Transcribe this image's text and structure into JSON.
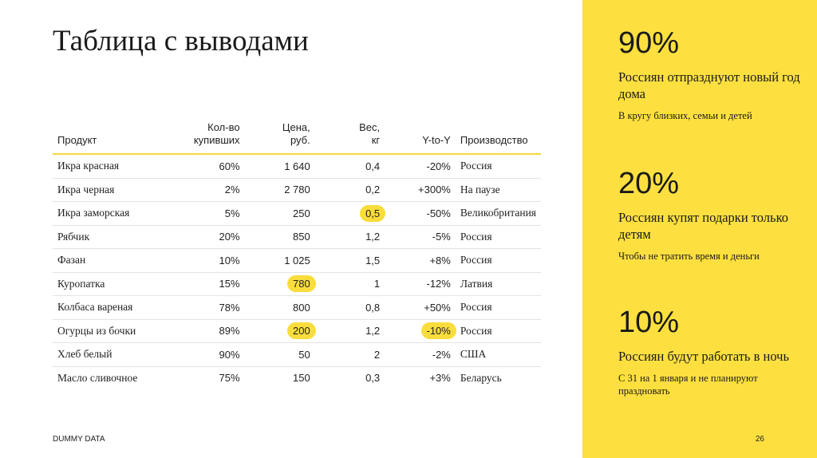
{
  "title": "Таблица с выводами",
  "table": {
    "headers": {
      "product": "Продукт",
      "share": "Кол-во\nкупивших",
      "price": "Цена,\nруб.",
      "weight": "Вес,\nкг",
      "yoy": "Y-to-Y",
      "origin": "Производство"
    },
    "rows": [
      {
        "product": "Икра красная",
        "share": "60%",
        "price": "1 640",
        "weight": "0,4",
        "yoy": "-20%",
        "origin": "Россия"
      },
      {
        "product": "Икра черная",
        "share": "2%",
        "price": "2 780",
        "weight": "0,2",
        "yoy": "+300%",
        "origin": "На паузе"
      },
      {
        "product": "Икра заморская",
        "share": "5%",
        "price": "250",
        "weight": "0,5",
        "yoy": "-50%",
        "origin": "Великобритания"
      },
      {
        "product": "Рябчик",
        "share": "20%",
        "price": "850",
        "weight": "1,2",
        "yoy": "-5%",
        "origin": "Россия"
      },
      {
        "product": "Фазан",
        "share": "10%",
        "price": "1 025",
        "weight": "1,5",
        "yoy": "+8%",
        "origin": "Россия"
      },
      {
        "product": "Куропатка",
        "share": "15%",
        "price": "780",
        "weight": "1",
        "yoy": "-12%",
        "origin": "Латвия"
      },
      {
        "product": "Колбаса вареная",
        "share": "78%",
        "price": "800",
        "weight": "0,8",
        "yoy": "+50%",
        "origin": "Россия"
      },
      {
        "product": "Огурцы из бочки",
        "share": "89%",
        "price": "200",
        "weight": "1,2",
        "yoy": "-10%",
        "origin": "Россия"
      },
      {
        "product": "Хлеб белый",
        "share": "90%",
        "price": "50",
        "weight": "2",
        "yoy": "-2%",
        "origin": "США"
      },
      {
        "product": "Масло сливочное",
        "share": "75%",
        "price": "150",
        "weight": "0,3",
        "yoy": "+3%",
        "origin": "Беларусь"
      }
    ]
  },
  "highlight_color": "#f9dd3c",
  "panel_color": "#fde03f",
  "stats": [
    {
      "pct": "90%",
      "headline": "Россиян отпразднуют новый год дома",
      "sub": "В кругу близких, семьи и детей"
    },
    {
      "pct": "20%",
      "headline": "Россиян купят подарки только детям",
      "sub": "Чтобы не тратить время и деньги"
    },
    {
      "pct": "10%",
      "headline": "Россиян будут работать в ночь",
      "sub": "С 31 на 1 января и не планируют праздновать"
    }
  ],
  "footer_note": "DUMMY DATA",
  "page_number": "26"
}
